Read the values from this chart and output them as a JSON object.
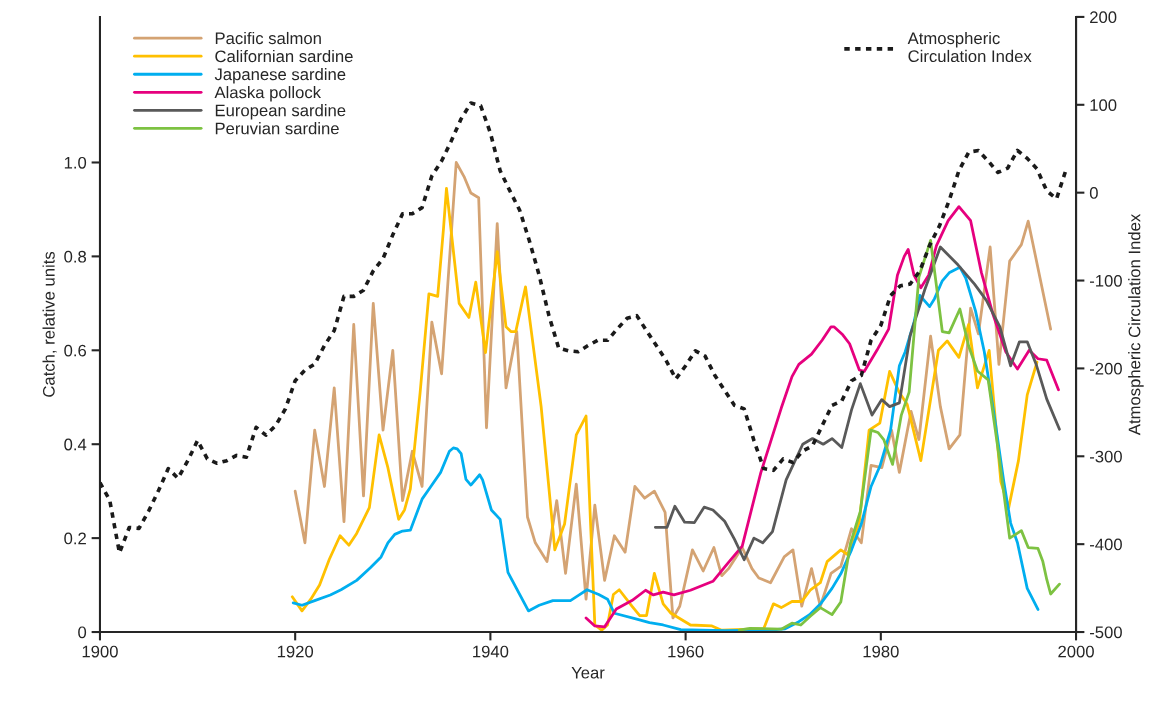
{
  "chart_data": {
    "type": "line",
    "xlabel": "Year",
    "ylabel": "Catch, relative units",
    "y2label": "Atmospheric Circulation Index",
    "xlim": [
      1900,
      2000
    ],
    "xticks": [
      1900,
      1920,
      1940,
      1960,
      1980,
      2000
    ],
    "ylim": [
      0,
      1.31
    ],
    "yticks": [
      0,
      {
        "value": 0.2,
        "label": "0.2"
      },
      {
        "value": 0.4,
        "label": "0.4"
      },
      {
        "value": 0.6,
        "label": "0.6"
      },
      {
        "value": 0.8,
        "label": "0.8"
      },
      {
        "value": 1.0,
        "label": "1.0"
      }
    ],
    "y2lim": [
      -500,
      200
    ],
    "y2ticks": [
      -500,
      -400,
      -300,
      -200,
      -100,
      0,
      100,
      200
    ],
    "legend": "top left",
    "grid": false,
    "series": [
      {
        "name": "Pacific salmon",
        "color": "#d4a373",
        "x": [
          1920,
          1921,
          1922,
          1923,
          1924,
          1925,
          1926,
          1927,
          1928,
          1929,
          1930,
          1931,
          1932,
          1933,
          1934,
          1935,
          1936.5,
          1937.3,
          1938,
          1938.8,
          1939.6,
          1940.7,
          1941.6,
          1942.7,
          1943.8,
          1944.6,
          1945.8,
          1946.8,
          1947.7,
          1948.8,
          1949.8,
          1950.7,
          1951.7,
          1952.7,
          1953.8,
          1954.8,
          1955.8,
          1956.8,
          1957.9,
          1958.7,
          1959.4,
          1960.7,
          1961.8,
          1962.9,
          1963.7,
          1964.4,
          1965.8,
          1966.8,
          1967.5,
          1968.7,
          1970.1,
          1971,
          1971.9,
          1972.9,
          1973.8,
          1974.9,
          1975.9,
          1977,
          1978,
          1979,
          1980.1,
          1981.1,
          1981.9,
          1983.1,
          1983.9,
          1985.1,
          1986.1,
          1987,
          1988.1,
          1989.2,
          1990,
          1991.2,
          1992.1,
          1993.2,
          1994.4,
          1995.1,
          1997.4
        ],
        "values": [
          0.3,
          0.19,
          0.43,
          0.31,
          0.52,
          0.235,
          0.655,
          0.29,
          0.7,
          0.43,
          0.6,
          0.28,
          0.385,
          0.31,
          0.66,
          0.55,
          1.0,
          0.97,
          0.935,
          0.925,
          0.435,
          0.87,
          0.52,
          0.64,
          0.245,
          0.19,
          0.15,
          0.28,
          0.125,
          0.315,
          0.07,
          0.27,
          0.11,
          0.205,
          0.17,
          0.31,
          0.285,
          0.3,
          0.255,
          0.03,
          0.055,
          0.175,
          0.13,
          0.18,
          0.12,
          0.135,
          0.18,
          0.135,
          0.115,
          0.105,
          0.16,
          0.175,
          0.055,
          0.135,
          0.055,
          0.125,
          0.14,
          0.22,
          0.19,
          0.355,
          0.35,
          0.43,
          0.34,
          0.47,
          0.41,
          0.63,
          0.48,
          0.39,
          0.42,
          0.69,
          0.635,
          0.82,
          0.57,
          0.79,
          0.825,
          0.875,
          0.645
        ]
      },
      {
        "name": "Californian sardine",
        "color": "#ffc000",
        "x": [
          1919.7,
          1920.7,
          1921.6,
          1922.5,
          1923.5,
          1924.6,
          1925.5,
          1926.3,
          1927.6,
          1928.6,
          1929.5,
          1930.6,
          1931.2,
          1931.8,
          1932.8,
          1933.7,
          1934.6,
          1935.2,
          1935.5,
          1936.8,
          1937.8,
          1938.5,
          1939.5,
          1940.7,
          1941.6,
          1942.1,
          1942.6,
          1943.6,
          1945.2,
          1946.6,
          1947.6,
          1948.8,
          1949.8,
          1950.7,
          1951.4,
          1952,
          1952.6,
          1953.2,
          1954.5,
          1955.3,
          1956,
          1956.8,
          1957.7,
          1958.5,
          1960.5,
          1962.7,
          1963.7,
          1968,
          1969,
          1969.8,
          1970.9,
          1971.9,
          1972.8,
          1973.8,
          1974.5,
          1975.9,
          1976.6,
          1977.8,
          1978.8,
          1979.9,
          1980.9,
          1981.9,
          1982.7,
          1984.1,
          1985.9,
          1986.8,
          1988,
          1989,
          1989.9,
          1991.1,
          1992.3,
          1993.1,
          1994.1,
          1995,
          1996
        ],
        "values": [
          0.075,
          0.045,
          0.07,
          0.1,
          0.155,
          0.205,
          0.185,
          0.21,
          0.265,
          0.42,
          0.35,
          0.24,
          0.26,
          0.305,
          0.51,
          0.72,
          0.715,
          0.86,
          0.945,
          0.7,
          0.67,
          0.745,
          0.595,
          0.81,
          0.65,
          0.64,
          0.64,
          0.735,
          0.48,
          0.175,
          0.23,
          0.42,
          0.46,
          0.015,
          0.004,
          0.015,
          0.08,
          0.09,
          0.055,
          0.035,
          0.035,
          0.125,
          0.06,
          0.04,
          0.015,
          0.013,
          0.004,
          0.007,
          0.06,
          0.052,
          0.065,
          0.065,
          0.09,
          0.105,
          0.15,
          0.175,
          0.165,
          0.235,
          0.43,
          0.445,
          0.555,
          0.51,
          0.485,
          0.365,
          0.6,
          0.62,
          0.585,
          0.655,
          0.52,
          0.6,
          0.32,
          0.265,
          0.365,
          0.505,
          0.575
        ]
      },
      {
        "name": "Japanese sardine",
        "color": "#00aeef",
        "x": [
          1919.8,
          1920.7,
          1922,
          1923.6,
          1924.7,
          1926.3,
          1927.7,
          1928.8,
          1929.5,
          1930.2,
          1931,
          1931.8,
          1933,
          1933.9,
          1934.9,
          1935.8,
          1936.2,
          1936.6,
          1937,
          1937.5,
          1938,
          1938.9,
          1939.2,
          1940.1,
          1941,
          1941.8,
          1943.9,
          1945,
          1946.4,
          1948.2,
          1949.1,
          1949.9,
          1951.1,
          1952,
          1952.7,
          1954.9,
          1956.3,
          1957.7,
          1959.5,
          1964,
          1968.7,
          1970.2,
          1971.6,
          1972.7,
          1973.9,
          1975,
          1975.9,
          1977,
          1978,
          1979,
          1979.9,
          1981,
          1981.9,
          1982.5,
          1983.4,
          1984,
          1985,
          1985.5,
          1986.3,
          1987,
          1988.1,
          1988.7,
          1989.7,
          1990.6,
          1991.7,
          1992.6,
          1993.3,
          1994,
          1995,
          1996.1
        ],
        "values": [
          0.062,
          0.057,
          0.067,
          0.079,
          0.09,
          0.11,
          0.137,
          0.16,
          0.19,
          0.208,
          0.215,
          0.217,
          0.283,
          0.31,
          0.34,
          0.385,
          0.392,
          0.39,
          0.38,
          0.325,
          0.313,
          0.335,
          0.324,
          0.26,
          0.24,
          0.127,
          0.045,
          0.057,
          0.067,
          0.067,
          0.079,
          0.09,
          0.08,
          0.07,
          0.04,
          0.028,
          0.02,
          0.015,
          0.005,
          0.003,
          0.004,
          0.007,
          0.022,
          0.037,
          0.062,
          0.093,
          0.124,
          0.175,
          0.23,
          0.31,
          0.353,
          0.43,
          0.567,
          0.597,
          0.66,
          0.717,
          0.693,
          0.71,
          0.748,
          0.765,
          0.777,
          0.754,
          0.684,
          0.597,
          0.45,
          0.32,
          0.232,
          0.19,
          0.093,
          0.048
        ]
      },
      {
        "name": "Alaska pollock",
        "color": "#e6007e",
        "x": [
          1949.8,
          1950.7,
          1951.7,
          1952.9,
          1954.5,
          1955.9,
          1956.7,
          1957.7,
          1958.8,
          1960.5,
          1962.8,
          1964.1,
          1965.8,
          1967.7,
          1969.8,
          1970.9,
          1971.6,
          1972.9,
          1974,
          1974.9,
          1975.2,
          1976.1,
          1976.8,
          1977.8,
          1978.3,
          1979.6,
          1980.8,
          1981.7,
          1982.4,
          1982.8,
          1983.4,
          1984.1,
          1984.9,
          1985.7,
          1986.9,
          1988,
          1989.2,
          1990.3,
          1991.5,
          1992.8,
          1994,
          1995.2,
          1996.1,
          1997,
          1998.2
        ],
        "values": [
          0.03,
          0.013,
          0.011,
          0.049,
          0.067,
          0.089,
          0.079,
          0.085,
          0.079,
          0.089,
          0.108,
          0.141,
          0.183,
          0.339,
          0.477,
          0.544,
          0.57,
          0.592,
          0.622,
          0.65,
          0.65,
          0.633,
          0.614,
          0.558,
          0.555,
          0.6,
          0.645,
          0.76,
          0.8,
          0.815,
          0.76,
          0.733,
          0.76,
          0.823,
          0.876,
          0.906,
          0.876,
          0.766,
          0.676,
          0.597,
          0.56,
          0.6,
          0.582,
          0.579,
          0.516
        ]
      },
      {
        "name": "European sardine",
        "color": "#595959",
        "x": [
          1956.9,
          1958.1,
          1958.9,
          1959.9,
          1960.9,
          1961.9,
          1962.8,
          1964,
          1965,
          1966,
          1967,
          1967.9,
          1968.9,
          1970.3,
          1972,
          1973,
          1974.1,
          1975,
          1976,
          1977,
          1977.9,
          1979.1,
          1980.1,
          1980.9,
          1981.9,
          1983,
          1984.5,
          1986.1,
          1987.9,
          1989.6,
          1990.8,
          1992.2,
          1993.3,
          1994.2,
          1995,
          1995.9,
          1997,
          1998.3
        ],
        "values": [
          0.223,
          0.223,
          0.268,
          0.234,
          0.233,
          0.266,
          0.26,
          0.236,
          0.198,
          0.154,
          0.2,
          0.19,
          0.214,
          0.324,
          0.4,
          0.412,
          0.4,
          0.412,
          0.393,
          0.473,
          0.529,
          0.462,
          0.495,
          0.48,
          0.488,
          0.631,
          0.729,
          0.82,
          0.782,
          0.741,
          0.707,
          0.65,
          0.567,
          0.618,
          0.618,
          0.571,
          0.496,
          0.432
        ]
      },
      {
        "name": "Peruvian sardine",
        "color": "#7dc242",
        "x": [
          1965.5,
          1966.6,
          1969.8,
          1970.9,
          1971.8,
          1972.8,
          1973.8,
          1975,
          1975.9,
          1976.9,
          1977.9,
          1979,
          1979.7,
          1980.3,
          1981.2,
          1982.1,
          1982.9,
          1983.9,
          1985.1,
          1986.3,
          1987,
          1988.1,
          1989,
          1989.9,
          1991,
          1992.1,
          1993.2,
          1994.4,
          1995.1,
          1996.1,
          1996.6,
          1997,
          1997.4,
          1998.3
        ],
        "values": [
          0.004,
          0.008,
          0.006,
          0.019,
          0.015,
          0.034,
          0.052,
          0.037,
          0.064,
          0.19,
          0.257,
          0.43,
          0.425,
          0.41,
          0.357,
          0.462,
          0.511,
          0.756,
          0.834,
          0.64,
          0.637,
          0.688,
          0.609,
          0.556,
          0.537,
          0.376,
          0.2,
          0.216,
          0.18,
          0.178,
          0.15,
          0.112,
          0.081,
          0.102
        ]
      },
      {
        "name": "Atmospheric Circulation Index",
        "color": "#1a1a1a",
        "axis": "y2",
        "line_style": "dotted",
        "x": [
          1900,
          1901,
          1902,
          1903,
          1904,
          1905,
          1906,
          1907,
          1908,
          1909,
          1910,
          1911,
          1912,
          1913,
          1914,
          1915,
          1916,
          1917,
          1918,
          1919,
          1920,
          1921,
          1922,
          1923,
          1924,
          1925,
          1926,
          1927,
          1928,
          1929,
          1930,
          1931,
          1932,
          1933,
          1934,
          1935,
          1936,
          1937,
          1938,
          1939,
          1940,
          1941,
          1942,
          1943,
          1944,
          1945,
          1946,
          1947,
          1948,
          1949,
          1950,
          1951,
          1952,
          1953,
          1954,
          1955,
          1956,
          1957,
          1958,
          1959,
          1960,
          1961,
          1962,
          1963,
          1964,
          1965,
          1966,
          1967,
          1968,
          1969,
          1970,
          1971,
          1972,
          1973,
          1974,
          1975,
          1976,
          1977,
          1978,
          1979,
          1980,
          1981,
          1982,
          1983,
          1984,
          1985,
          1986,
          1987,
          1988,
          1989,
          1990,
          1991,
          1992,
          1993,
          1994,
          1995,
          1996,
          1997,
          1998,
          1999
        ],
        "values": [
          -330,
          -350,
          -410,
          -381,
          -382,
          -362,
          -339,
          -314,
          -325,
          -305,
          -282,
          -303,
          -308,
          -305,
          -299,
          -301,
          -267,
          -276,
          -265,
          -246,
          -214,
          -202,
          -195,
          -174,
          -157,
          -118,
          -118,
          -111,
          -89,
          -75,
          -48,
          -24,
          -24,
          -17,
          19,
          36,
          59,
          84,
          102,
          99,
          68,
          25,
          2,
          -20,
          -55,
          -94,
          -140,
          -177,
          -180,
          -181,
          -174,
          -168,
          -168,
          -155,
          -143,
          -140,
          -157,
          -174,
          -191,
          -212,
          -197,
          -180,
          -186,
          -208,
          -225,
          -242,
          -246,
          -282,
          -314,
          -316,
          -303,
          -307,
          -294,
          -288,
          -265,
          -242,
          -237,
          -214,
          -208,
          -168,
          -151,
          -117,
          -106,
          -104,
          -89,
          -60,
          -38,
          -9,
          25,
          46,
          48,
          36,
          23,
          28,
          48,
          39,
          27,
          2,
          -7,
          27
        ]
      }
    ]
  }
}
